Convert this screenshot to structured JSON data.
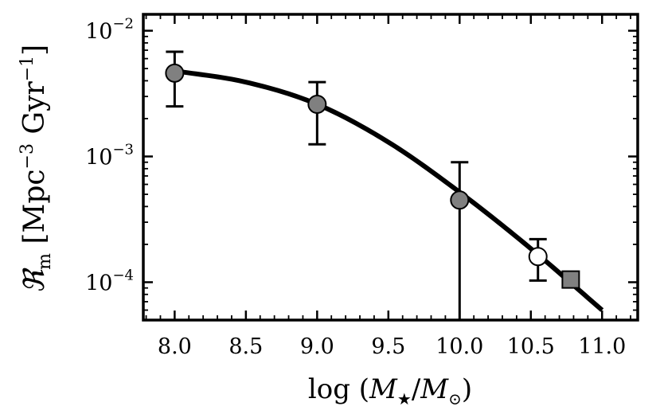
{
  "chart_data": {
    "type": "scatter",
    "title": "",
    "xlabel": "log (M★/M⊙)",
    "ylabel": "ℜm [Mpc−3 Gyr−1]",
    "x_ticks": [
      "8.0",
      "8.5",
      "9.0",
      "9.5",
      "10.0",
      "10.5",
      "11.0"
    ],
    "y_ticks": [
      {
        "base": "10",
        "exp": "−2",
        "value": 0.01
      },
      {
        "base": "10",
        "exp": "−3",
        "value": 0.001
      },
      {
        "base": "10",
        "exp": "−4",
        "value": 0.0001
      }
    ],
    "xlim": [
      7.78,
      11.25
    ],
    "ylim": [
      5e-05,
      0.0135
    ],
    "yscale": "log",
    "grid": false,
    "series": [
      {
        "marker": "circle",
        "color": "#808080",
        "points": [
          {
            "x": 8.0,
            "y": 0.0046,
            "yerr_low": 0.0025,
            "yerr_high": 0.0068
          },
          {
            "x": 9.0,
            "y": 0.0026,
            "yerr_low": 0.00125,
            "yerr_high": 0.0039
          },
          {
            "x": 10.0,
            "y": 0.00045,
            "yerr_low": 5e-05,
            "yerr_high": 0.0009
          }
        ]
      },
      {
        "marker": "circle-open",
        "color": "#ffffff",
        "points": [
          {
            "x": 10.55,
            "y": 0.00016,
            "yerr_low": 0.000103,
            "yerr_high": 0.00022
          }
        ]
      },
      {
        "marker": "square",
        "color": "#808080",
        "points": [
          {
            "x": 10.78,
            "y": 0.000105,
            "yerr_low": 9.2e-05,
            "yerr_high": 0.000113
          }
        ]
      }
    ],
    "fit_curve": {
      "color": "#000000",
      "points": [
        {
          "x": 8.0,
          "y": 0.0048
        },
        {
          "x": 8.5,
          "y": 0.0039
        },
        {
          "x": 9.0,
          "y": 0.0026
        },
        {
          "x": 9.5,
          "y": 0.0013
        },
        {
          "x": 10.0,
          "y": 0.00052
        },
        {
          "x": 10.5,
          "y": 0.000185
        },
        {
          "x": 11.0,
          "y": 6e-05
        }
      ]
    }
  }
}
